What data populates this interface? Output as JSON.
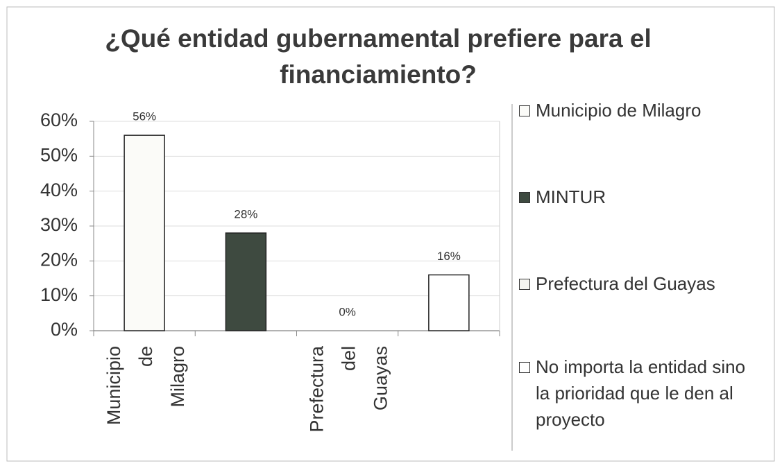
{
  "chart_data": {
    "type": "bar",
    "title": "¿Qué entidad gubernamental prefiere para el financiamiento?",
    "categories": [
      "Municipio de Milagro",
      null,
      "Prefectura del Guayas",
      null
    ],
    "values": [
      56,
      28,
      0,
      16
    ],
    "value_labels": [
      "56%",
      "28%",
      "0%",
      "16%"
    ],
    "colors": [
      "#fbfbf8",
      "#3e4a40",
      "#f4f4f0",
      "#ffffff"
    ],
    "ylim": [
      0,
      60
    ],
    "yticks": [
      {
        "value": 0,
        "label": "0%"
      },
      {
        "value": 10,
        "label": "10%"
      },
      {
        "value": 20,
        "label": "20%"
      },
      {
        "value": 30,
        "label": "30%"
      },
      {
        "value": 40,
        "label": "40%"
      },
      {
        "value": 50,
        "label": "50%"
      },
      {
        "value": 60,
        "label": "60%"
      }
    ],
    "grid": true,
    "legend": [
      "Municipio de Milagro",
      "MINTUR",
      "Prefectura del Guayas",
      "No importa la entidad sino la prioridad que le den al proyecto"
    ],
    "legend_position": "right"
  }
}
